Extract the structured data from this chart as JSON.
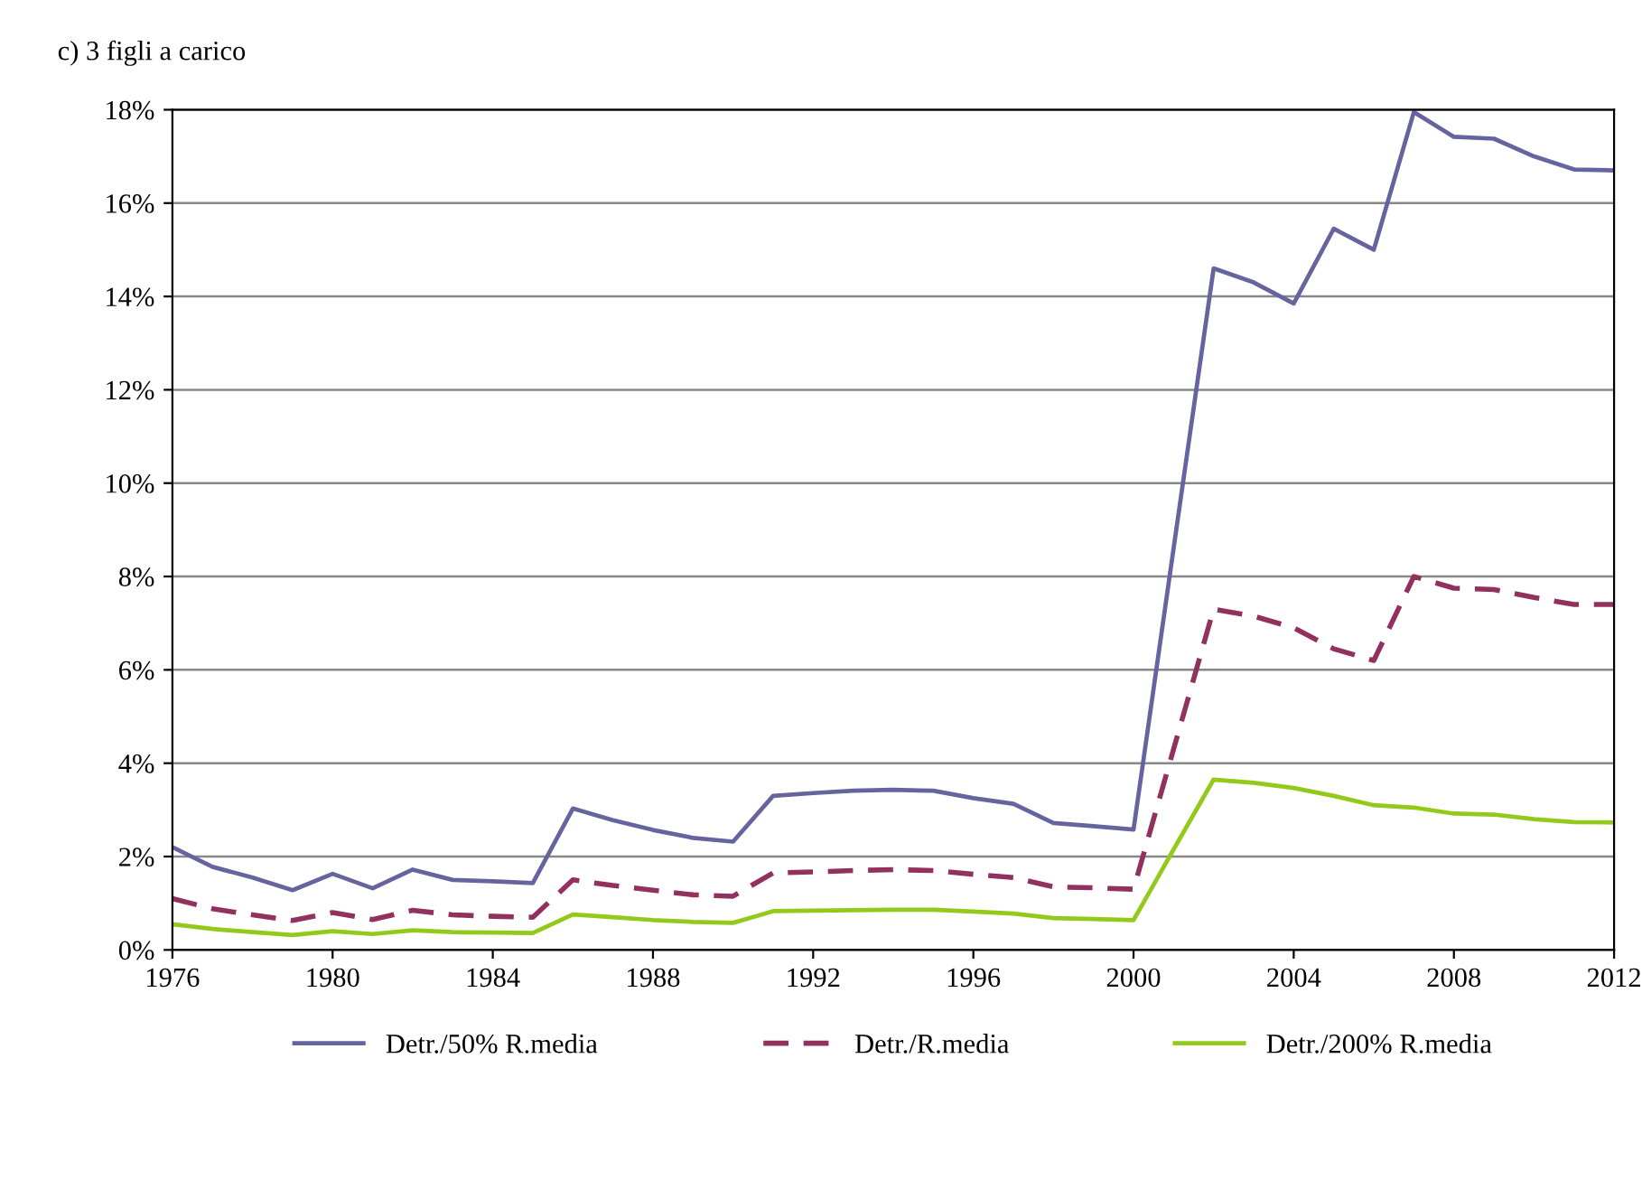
{
  "chart_data": {
    "type": "line",
    "title": "c) 3 figli a carico",
    "x": [
      1976,
      1977,
      1978,
      1979,
      1980,
      1981,
      1982,
      1983,
      1984,
      1985,
      1986,
      1987,
      1988,
      1989,
      1990,
      1991,
      1992,
      1993,
      1994,
      1995,
      1996,
      1997,
      1998,
      1999,
      2000,
      2001,
      2002,
      2003,
      2004,
      2005,
      2006,
      2007,
      2008,
      2009,
      2010,
      2011,
      2012
    ],
    "series": [
      {
        "name": "Detr./50% R.media",
        "color": "#66649f",
        "line_style": "solid",
        "values": [
          2.2,
          1.78,
          1.55,
          1.28,
          1.63,
          1.32,
          1.72,
          1.5,
          1.47,
          1.43,
          3.03,
          2.78,
          2.57,
          2.4,
          2.32,
          3.3,
          3.36,
          3.41,
          3.43,
          3.41,
          3.25,
          3.13,
          2.72,
          2.65,
          2.58,
          8.6,
          14.6,
          14.3,
          13.85,
          15.45,
          15.0,
          17.95,
          17.42,
          17.38,
          17.0,
          16.72,
          16.7
        ]
      },
      {
        "name": "Detr./R.media",
        "color": "#92305f",
        "line_style": "dashed",
        "values": [
          1.1,
          0.88,
          0.75,
          0.63,
          0.8,
          0.65,
          0.85,
          0.75,
          0.72,
          0.7,
          1.5,
          1.38,
          1.28,
          1.18,
          1.15,
          1.65,
          1.67,
          1.7,
          1.72,
          1.7,
          1.62,
          1.55,
          1.35,
          1.33,
          1.3,
          4.3,
          7.3,
          7.15,
          6.9,
          6.45,
          6.2,
          8.0,
          7.75,
          7.72,
          7.55,
          7.4,
          7.4
        ]
      },
      {
        "name": "Detr./200% R.media",
        "color": "#93c91b",
        "line_style": "solid",
        "values": [
          0.55,
          0.45,
          0.38,
          0.32,
          0.4,
          0.34,
          0.42,
          0.38,
          0.37,
          0.36,
          0.76,
          0.7,
          0.64,
          0.6,
          0.58,
          0.83,
          0.84,
          0.85,
          0.86,
          0.86,
          0.82,
          0.78,
          0.68,
          0.66,
          0.64,
          2.15,
          3.65,
          3.58,
          3.47,
          3.3,
          3.1,
          3.05,
          2.92,
          2.9,
          2.8,
          2.74,
          2.73
        ]
      }
    ],
    "xlim": [
      1976,
      2012
    ],
    "xticks": [
      1976,
      1980,
      1984,
      1988,
      1992,
      1996,
      2000,
      2004,
      2008,
      2012
    ],
    "ylim": [
      0,
      18
    ],
    "yticks": [
      {
        "value": 0,
        "label": "0%"
      },
      {
        "value": 2,
        "label": "2%"
      },
      {
        "value": 4,
        "label": "4%"
      },
      {
        "value": 6,
        "label": "6%"
      },
      {
        "value": 8,
        "label": "8%"
      },
      {
        "value": 10,
        "label": "10%"
      },
      {
        "value": 12,
        "label": "12%"
      },
      {
        "value": 14,
        "label": "14%"
      },
      {
        "value": 16,
        "label": "16%"
      },
      {
        "value": 18,
        "label": "18%"
      }
    ],
    "grid": "y",
    "legend": "bottom",
    "marker": "none"
  }
}
